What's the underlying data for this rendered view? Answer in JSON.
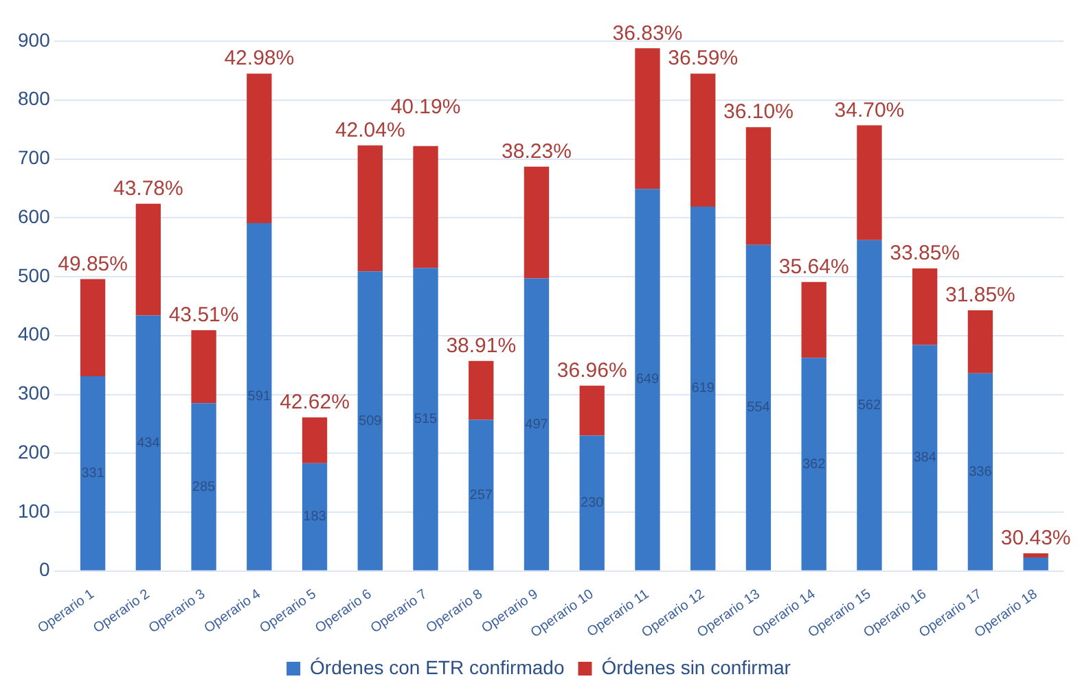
{
  "chart_data": {
    "type": "bar",
    "stacked": true,
    "categories": [
      "Operario 1",
      "Operario 2",
      "Operario 3",
      "Operario 4",
      "Operario 5",
      "Operario 6",
      "Operario 7",
      "Operario 8",
      "Operario 9",
      "Operario 10",
      "Operario 11",
      "Operario 12",
      "Operario 13",
      "Operario 14",
      "Operario 15",
      "Operario 16",
      "Operario 17",
      "Operario 18"
    ],
    "series": [
      {
        "name": "Órdenes con ETR confirmado",
        "color": "#3a78c8",
        "values": [
          331,
          434,
          285,
          591,
          183,
          509,
          515,
          257,
          497,
          230,
          649,
          619,
          554,
          362,
          562,
          384,
          336,
          23
        ],
        "value_labels": [
          "331",
          "434",
          "285",
          "591",
          "183",
          "509",
          "515",
          "257",
          "497",
          "230",
          "649",
          "619",
          "554",
          "362",
          "562",
          "384",
          "336",
          null
        ]
      },
      {
        "name": "Órdenes sin confirmar",
        "color": "#c8342f",
        "values": [
          165,
          190,
          124,
          254,
          78,
          214,
          207,
          100,
          190,
          85,
          239,
          226,
          200,
          129,
          195,
          130,
          107,
          7
        ]
      }
    ],
    "annotations": [
      {
        "text": "49.85%",
        "x": "Operario 1",
        "y": 496
      },
      {
        "text": "43.78%",
        "x": "Operario 2",
        "y": 624
      },
      {
        "text": "43.51%",
        "x": "Operario 3",
        "y": 409
      },
      {
        "text": "42.98%",
        "x": "Operario 4",
        "y": 845
      },
      {
        "text": "42.62%",
        "x": "Operario 5",
        "y": 261
      },
      {
        "text": "42.04%",
        "x": "Operario 6",
        "y": 723
      },
      {
        "text": "40.19%",
        "x": "Operario 7",
        "y": 722
      },
      {
        "text": "38.91%",
        "x": "Operario 8",
        "y": 357
      },
      {
        "text": "38.23%",
        "x": "Operario 9",
        "y": 687
      },
      {
        "text": "36.96%",
        "x": "Operario 10",
        "y": 315
      },
      {
        "text": "36.83%",
        "x": "Operario 11",
        "y": 888
      },
      {
        "text": "36.59%",
        "x": "Operario 12",
        "y": 845
      },
      {
        "text": "36.10%",
        "x": "Operario 13",
        "y": 754
      },
      {
        "text": "35.64%",
        "x": "Operario 14",
        "y": 491
      },
      {
        "text": "34.70%",
        "x": "Operario 15",
        "y": 757
      },
      {
        "text": "33.85%",
        "x": "Operario 16",
        "y": 514
      },
      {
        "text": "31.85%",
        "x": "Operario 17",
        "y": 443
      },
      {
        "text": "30.43%",
        "x": "Operario 18",
        "y": 30
      }
    ],
    "ylim": [
      0,
      900
    ],
    "yticks": [
      0,
      100,
      200,
      300,
      400,
      500,
      600,
      700,
      800,
      900
    ],
    "grid": "y",
    "legend": "bottom"
  }
}
